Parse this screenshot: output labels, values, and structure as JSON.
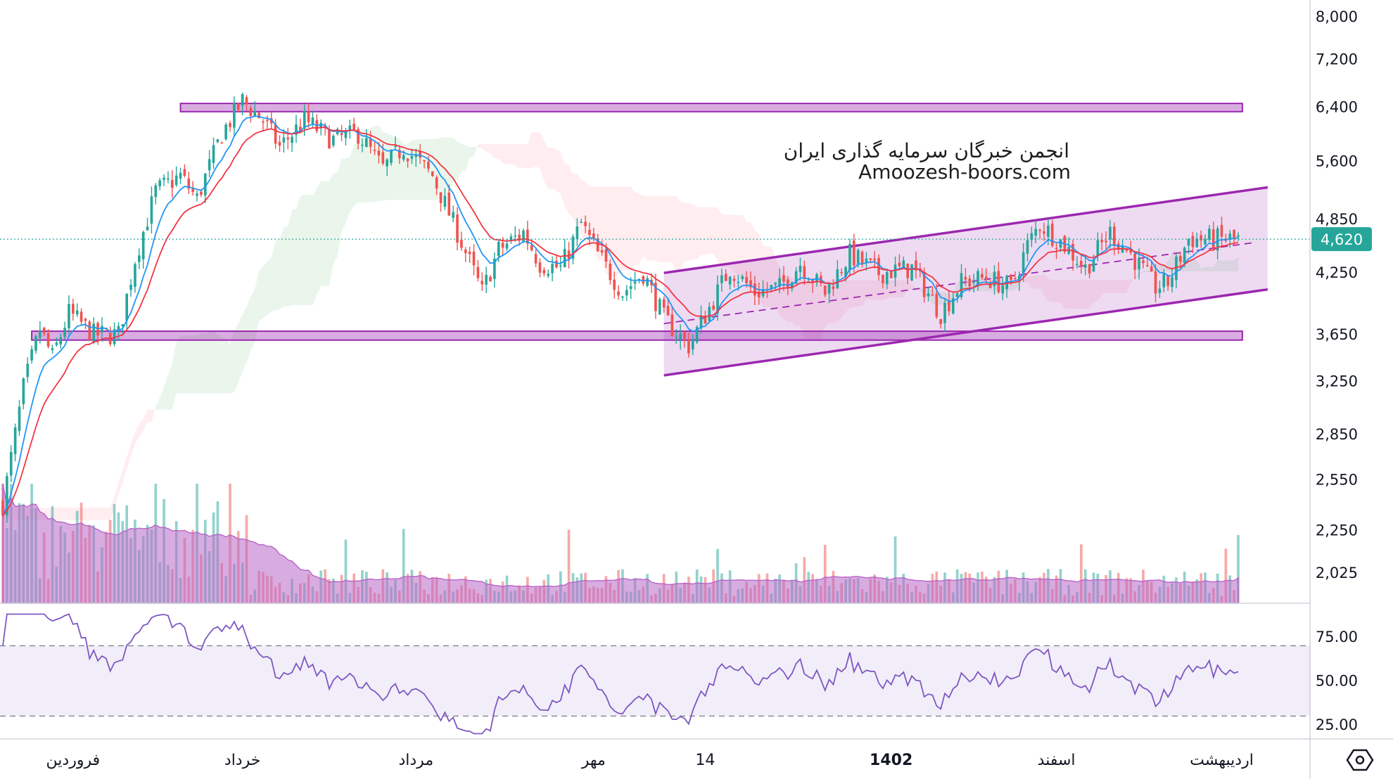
{
  "watermark": {
    "line1": "انجمن خبرگان سرمایه گذاری ایران",
    "line2": "Amoozesh-boors.com"
  },
  "colors": {
    "up": "#26a69a",
    "down": "#ef5350",
    "ma_fast": "#2196f3",
    "ma_slow": "#f23645",
    "zone": "#9c27b0",
    "volume_ma": "#ba68c8",
    "rsi": "#7e57c2",
    "cloud_bull": "#e8f5e9",
    "cloud_bear": "#ffebee",
    "price_badge": "#26a69a"
  },
  "chart_data": {
    "type": "candlestick",
    "price_axis": {
      "scale": "log",
      "ticks": [
        "8,000",
        "7,200",
        "6,400",
        "5,600",
        "4,850",
        "4,250",
        "3,650",
        "3,250",
        "2,850",
        "2,550",
        "2,250",
        "2,025"
      ],
      "tick_values": [
        8000,
        7200,
        6400,
        5600,
        4850,
        4250,
        3650,
        3250,
        2850,
        2550,
        2250,
        2025
      ],
      "last_price_label": "4,620",
      "last_price": 4620
    },
    "rsi_axis": {
      "ticks": [
        "75.00",
        "50.00",
        "25.00"
      ],
      "tick_values": [
        75,
        50,
        25
      ],
      "upper_band": 70,
      "lower_band": 30
    },
    "time_axis": {
      "labels": [
        "فروردین",
        "خرداد",
        "مرداد",
        "مهر",
        "14",
        "1402",
        "اسفند",
        "اردیبهشت"
      ],
      "bold": [
        false,
        false,
        false,
        false,
        false,
        true,
        false,
        false
      ],
      "bar_index": [
        17,
        58,
        100,
        143,
        170,
        215,
        255,
        295
      ]
    },
    "zones": [
      {
        "price_low": 6330,
        "price_high": 6460,
        "from_bar": 43,
        "to_bar": 300
      },
      {
        "price_low": 3600,
        "price_high": 3680,
        "from_bar": 7,
        "to_bar": 300
      }
    ],
    "channel": {
      "from_bar": 160,
      "to_bar": 300,
      "upper": [
        4250,
        5250
      ],
      "lower": [
        3300,
        4080
      ],
      "mid": [
        3750,
        4580
      ]
    },
    "anchors": [
      {
        "i": 0,
        "p": 2400
      },
      {
        "i": 5,
        "p": 3200
      },
      {
        "i": 9,
        "p": 3700
      },
      {
        "i": 12,
        "p": 3450
      },
      {
        "i": 16,
        "p": 3850
      },
      {
        "i": 22,
        "p": 3650
      },
      {
        "i": 28,
        "p": 3650
      },
      {
        "i": 32,
        "p": 4400
      },
      {
        "i": 37,
        "p": 5200
      },
      {
        "i": 43,
        "p": 5400
      },
      {
        "i": 47,
        "p": 5100
      },
      {
        "i": 53,
        "p": 6000
      },
      {
        "i": 58,
        "p": 6500
      },
      {
        "i": 63,
        "p": 6200
      },
      {
        "i": 67,
        "p": 5800
      },
      {
        "i": 73,
        "p": 6200
      },
      {
        "i": 80,
        "p": 5900
      },
      {
        "i": 86,
        "p": 6000
      },
      {
        "i": 92,
        "p": 5500
      },
      {
        "i": 97,
        "p": 5800
      },
      {
        "i": 104,
        "p": 5400
      },
      {
        "i": 110,
        "p": 4700
      },
      {
        "i": 116,
        "p": 4050
      },
      {
        "i": 120,
        "p": 4500
      },
      {
        "i": 126,
        "p": 4700
      },
      {
        "i": 130,
        "p": 4350
      },
      {
        "i": 135,
        "p": 4300
      },
      {
        "i": 140,
        "p": 4800
      },
      {
        "i": 144,
        "p": 4450
      },
      {
        "i": 150,
        "p": 4050
      },
      {
        "i": 155,
        "p": 4250
      },
      {
        "i": 160,
        "p": 3800
      },
      {
        "i": 166,
        "p": 3550
      },
      {
        "i": 171,
        "p": 3900
      },
      {
        "i": 176,
        "p": 4300
      },
      {
        "i": 182,
        "p": 4050
      },
      {
        "i": 188,
        "p": 4100
      },
      {
        "i": 193,
        "p": 4350
      },
      {
        "i": 199,
        "p": 4050
      },
      {
        "i": 205,
        "p": 4450
      },
      {
        "i": 212,
        "p": 4250
      },
      {
        "i": 220,
        "p": 4300
      },
      {
        "i": 227,
        "p": 3850
      },
      {
        "i": 232,
        "p": 4150
      },
      {
        "i": 238,
        "p": 4200
      },
      {
        "i": 244,
        "p": 4100
      },
      {
        "i": 248,
        "p": 4550
      },
      {
        "i": 251,
        "p": 4800
      },
      {
        "i": 257,
        "p": 4550
      },
      {
        "i": 262,
        "p": 4300
      },
      {
        "i": 268,
        "p": 4700
      },
      {
        "i": 273,
        "p": 4450
      },
      {
        "i": 279,
        "p": 4100
      },
      {
        "i": 282,
        "p": 4150
      },
      {
        "i": 287,
        "p": 4620
      }
    ]
  }
}
